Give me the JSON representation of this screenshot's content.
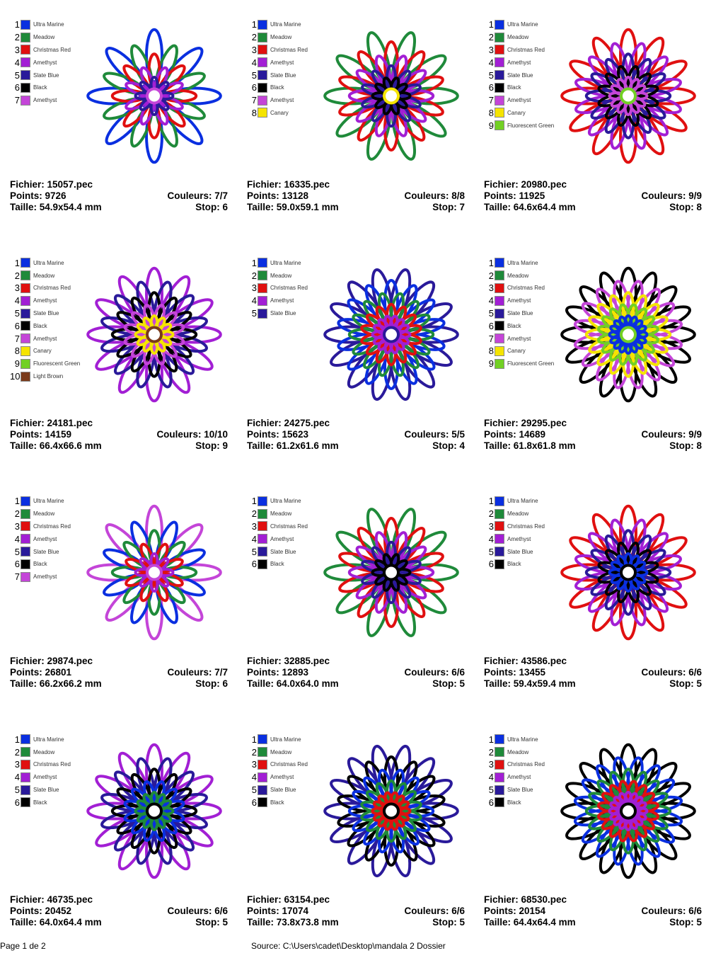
{
  "thread_colors": {
    "Ultra Marine": "#0a2fe0",
    "Meadow": "#1f8a3a",
    "Christmas Red": "#e01010",
    "Amethyst": "#a21fd4",
    "Slate Blue": "#2a1a9a",
    "Black": "#000000",
    "Amethyst 2": "#c445d8",
    "Canary": "#f5e400",
    "Fluorescent Green": "#72d024",
    "Light Brown": "#7a3a1a"
  },
  "labels": {
    "file": "Fichier: ",
    "points": "Points: ",
    "colors": "Couleurs: ",
    "size": "Taille: ",
    "stop": "Stop: "
  },
  "designs": [
    {
      "file": "15057.pec",
      "points": "9726",
      "colors": "7/7",
      "size": "54.9x54.4 mm",
      "stop": "6",
      "threads": [
        "Ultra Marine",
        "Meadow",
        "Christmas Red",
        "Amethyst",
        "Slate Blue",
        "Black",
        "Amethyst"
      ]
    },
    {
      "file": "16335.pec",
      "points": "13128",
      "colors": "8/8",
      "size": "59.0x59.1 mm",
      "stop": "7",
      "threads": [
        "Ultra Marine",
        "Meadow",
        "Christmas Red",
        "Amethyst",
        "Slate Blue",
        "Black",
        "Amethyst",
        "Canary"
      ]
    },
    {
      "file": "20980.pec",
      "points": "11925",
      "colors": "9/9",
      "size": "64.6x64.4 mm",
      "stop": "8",
      "threads": [
        "Ultra Marine",
        "Meadow",
        "Christmas Red",
        "Amethyst",
        "Slate Blue",
        "Black",
        "Amethyst",
        "Canary",
        "Fluorescent Green"
      ]
    },
    {
      "file": "24181.pec",
      "points": "14159",
      "colors": "10/10",
      "size": "66.4x66.6 mm",
      "stop": "9",
      "threads": [
        "Ultra Marine",
        "Meadow",
        "Christmas Red",
        "Amethyst",
        "Slate Blue",
        "Black",
        "Amethyst",
        "Canary",
        "Fluorescent Green",
        "Light Brown"
      ]
    },
    {
      "file": "24275.pec",
      "points": "15623",
      "colors": "5/5",
      "size": "61.2x61.6 mm",
      "stop": "4",
      "threads": [
        "Ultra Marine",
        "Meadow",
        "Christmas Red",
        "Amethyst",
        "Slate Blue"
      ]
    },
    {
      "file": "29295.pec",
      "points": "14689",
      "colors": "9/9",
      "size": "61.8x61.8 mm",
      "stop": "8",
      "threads": [
        "Ultra Marine",
        "Meadow",
        "Christmas Red",
        "Amethyst",
        "Slate Blue",
        "Black",
        "Amethyst",
        "Canary",
        "Fluorescent Green"
      ]
    },
    {
      "file": "29874.pec",
      "points": "26801",
      "colors": "7/7",
      "size": "66.2x66.2 mm",
      "stop": "6",
      "threads": [
        "Ultra Marine",
        "Meadow",
        "Christmas Red",
        "Amethyst",
        "Slate Blue",
        "Black",
        "Amethyst"
      ]
    },
    {
      "file": "32885.pec",
      "points": "12893",
      "colors": "6/6",
      "size": "64.0x64.0 mm",
      "stop": "5",
      "threads": [
        "Ultra Marine",
        "Meadow",
        "Christmas Red",
        "Amethyst",
        "Slate Blue",
        "Black"
      ]
    },
    {
      "file": "43586.pec",
      "points": "13455",
      "colors": "6/6",
      "size": "59.4x59.4 mm",
      "stop": "5",
      "threads": [
        "Ultra Marine",
        "Meadow",
        "Christmas Red",
        "Amethyst",
        "Slate Blue",
        "Black"
      ]
    },
    {
      "file": "46735.pec",
      "points": "20452",
      "colors": "6/6",
      "size": "64.0x64.4 mm",
      "stop": "5",
      "threads": [
        "Ultra Marine",
        "Meadow",
        "Christmas Red",
        "Amethyst",
        "Slate Blue",
        "Black"
      ]
    },
    {
      "file": "63154.pec",
      "points": "17074",
      "colors": "6/6",
      "size": "73.8x73.8 mm",
      "stop": "5",
      "threads": [
        "Ultra Marine",
        "Meadow",
        "Christmas Red",
        "Amethyst",
        "Slate Blue",
        "Black"
      ]
    },
    {
      "file": "68530.pec",
      "points": "20154",
      "colors": "6/6",
      "size": "64.4x64.4 mm",
      "stop": "5",
      "threads": [
        "Ultra Marine",
        "Meadow",
        "Christmas Red",
        "Amethyst",
        "Slate Blue",
        "Black"
      ]
    }
  ],
  "footer": {
    "page": "Page 1 de 2",
    "source": "Source: C:\\Users\\cadet\\Desktop\\mandala 2 Dossier"
  }
}
